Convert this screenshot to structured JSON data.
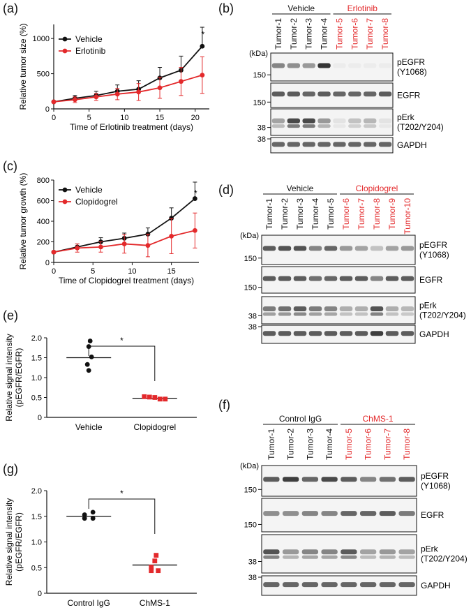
{
  "colors": {
    "control": "#111111",
    "treatment": "#e3292b",
    "blot_bg": "#f4f4f4",
    "band": "#2a2a2a"
  },
  "panels": {
    "a": "(a)",
    "b": "(b)",
    "c": "(c)",
    "d": "(d)",
    "e": "(e)",
    "f": "(f)",
    "g": "(g)"
  },
  "chart_data": [
    {
      "id": "a",
      "type": "line",
      "xlabel": "Time of Erlotinib treatment (days)",
      "ylabel": "Relative tumor size (%)",
      "xlim": [
        0,
        22
      ],
      "ylim": [
        0,
        1200
      ],
      "xticks": [
        0,
        5,
        10,
        15,
        20
      ],
      "yticks": [
        0,
        500,
        1000
      ],
      "annotation": "*",
      "series": [
        {
          "name": "Vehicle",
          "color": "#111111",
          "x": [
            0,
            3,
            6,
            9,
            12,
            15,
            18,
            21
          ],
          "y": [
            100,
            150,
            190,
            250,
            280,
            440,
            550,
            890
          ],
          "err": [
            15,
            40,
            60,
            90,
            120,
            150,
            200,
            270
          ]
        },
        {
          "name": "Erlotinib",
          "color": "#e3292b",
          "x": [
            0,
            3,
            6,
            9,
            12,
            15,
            18,
            21
          ],
          "y": [
            100,
            130,
            170,
            210,
            240,
            300,
            390,
            480
          ],
          "err": [
            10,
            40,
            50,
            80,
            120,
            150,
            200,
            260
          ]
        }
      ]
    },
    {
      "id": "c",
      "type": "line",
      "xlabel": "Time of Clopidogrel treatment (days)",
      "ylabel": "Relative tumor growth (%)",
      "xlim": [
        0,
        18.5
      ],
      "ylim": [
        0,
        800
      ],
      "xticks": [
        0,
        5,
        10,
        15
      ],
      "yticks": [
        0,
        200,
        400,
        600,
        800
      ],
      "annotation": "*",
      "series": [
        {
          "name": "Vehicle",
          "color": "#111111",
          "x": [
            0,
            3,
            6,
            9,
            12,
            15,
            18
          ],
          "y": [
            100,
            150,
            200,
            235,
            275,
            430,
            620
          ],
          "err": [
            10,
            30,
            40,
            50,
            60,
            100,
            160
          ]
        },
        {
          "name": "Clopidogrel",
          "color": "#e3292b",
          "x": [
            0,
            3,
            6,
            9,
            12,
            15,
            18
          ],
          "y": [
            100,
            140,
            150,
            180,
            165,
            255,
            310
          ],
          "err": [
            10,
            40,
            50,
            90,
            110,
            170,
            170
          ]
        }
      ]
    },
    {
      "id": "e",
      "type": "scatter",
      "ylabel": "Relative signal intensity (pEGFR/EGFR)",
      "categories": [
        "Vehicle",
        "Clopidogrel"
      ],
      "ylim": [
        0,
        2.0
      ],
      "yticks": [
        "0",
        "0.5",
        "1.0",
        "1.5",
        "2.0"
      ],
      "annotation": "*",
      "groups": [
        {
          "name": "Vehicle",
          "marker": "circle",
          "color": "#111111",
          "mean": 1.5,
          "values": [
            1.92,
            1.78,
            1.52,
            1.33,
            1.18
          ]
        },
        {
          "name": "Clopidogrel",
          "marker": "square",
          "color": "#e3292b",
          "mean": 0.48,
          "values": [
            0.52,
            0.51,
            0.5,
            0.46,
            0.46
          ]
        }
      ]
    },
    {
      "id": "g",
      "type": "scatter",
      "ylabel": "Relative signal intensity (pEGFR/EGFR)",
      "categories": [
        "Control IgG",
        "ChMS-1"
      ],
      "ylim": [
        0,
        2.0
      ],
      "yticks": [
        "0",
        "0.5",
        "1.0",
        "1.5",
        "2.0"
      ],
      "annotation": "*",
      "groups": [
        {
          "name": "Control IgG",
          "marker": "circle",
          "color": "#111111",
          "mean": 1.5,
          "values": [
            1.58,
            1.53,
            1.46,
            1.46
          ]
        },
        {
          "name": "ChMS-1",
          "marker": "square",
          "color": "#e3292b",
          "mean": 0.55,
          "values": [
            0.74,
            0.63,
            0.51,
            0.44,
            0.44
          ]
        }
      ]
    }
  ],
  "blots": [
    {
      "id": "b",
      "groups": [
        {
          "label": "Vehicle",
          "color": "#111111",
          "span": [
            0,
            3
          ]
        },
        {
          "label": "Erlotinib",
          "color": "#e3292b",
          "span": [
            4,
            7
          ]
        }
      ],
      "lanes": [
        "Tumor-1",
        "Tumor-2",
        "Tumor-3",
        "Tumor-4",
        "Tumor-5",
        "Tumor-6",
        "Tumor-7",
        "Tumor-8"
      ],
      "lane_colors": [
        "#111111",
        "#111111",
        "#111111",
        "#111111",
        "#e3292b",
        "#e3292b",
        "#e3292b",
        "#e3292b"
      ],
      "kda_unit": "(kDa)",
      "strips": [
        {
          "label": "pEGFR\n(Y1068)",
          "marker": "150",
          "intensity": [
            0.55,
            0.5,
            0.45,
            0.95,
            0.04,
            0.04,
            0.04,
            0.04
          ]
        },
        {
          "label": "EGFR",
          "marker": "150",
          "intensity": [
            0.75,
            0.75,
            0.7,
            0.75,
            0.7,
            0.7,
            0.7,
            0.75
          ]
        },
        {
          "label": "pErk\n(T202/Y204)",
          "marker": "38",
          "intensity": [
            0.4,
            0.85,
            0.85,
            0.45,
            0.08,
            0.25,
            0.3,
            0.08
          ]
        },
        {
          "label": "GAPDH",
          "marker": "38",
          "intensity": [
            0.7,
            0.7,
            0.7,
            0.7,
            0.7,
            0.7,
            0.7,
            0.7
          ]
        }
      ]
    },
    {
      "id": "d",
      "groups": [
        {
          "label": "Vehicle",
          "color": "#111111",
          "span": [
            0,
            4
          ]
        },
        {
          "label": "Clopidogrel",
          "color": "#e3292b",
          "span": [
            5,
            9
          ]
        }
      ],
      "lanes": [
        "Tumor-1",
        "Tumor-2",
        "Tumor-3",
        "Tumor-4",
        "Tumor-5",
        "Tumor-6",
        "Tumor-7",
        "Tumor-8",
        "Tumor-9",
        "Tumor-10"
      ],
      "lane_colors": [
        "#111111",
        "#111111",
        "#111111",
        "#111111",
        "#111111",
        "#e3292b",
        "#e3292b",
        "#e3292b",
        "#e3292b",
        "#e3292b"
      ],
      "kda_unit": "(kDa)",
      "strips": [
        {
          "label": "pEGFR\n(Y1068)",
          "marker": "150",
          "intensity": [
            0.75,
            0.8,
            0.8,
            0.55,
            0.7,
            0.45,
            0.4,
            0.25,
            0.4,
            0.45
          ]
        },
        {
          "label": "EGFR",
          "marker": "150",
          "intensity": [
            0.75,
            0.75,
            0.75,
            0.65,
            0.7,
            0.75,
            0.75,
            0.55,
            0.75,
            0.75
          ]
        },
        {
          "label": "pErk\n(T202/Y204)",
          "marker": "38",
          "intensity": [
            0.6,
            0.65,
            0.75,
            0.6,
            0.55,
            0.35,
            0.35,
            0.8,
            0.35,
            0.3
          ]
        },
        {
          "label": "GAPDH",
          "marker": "38",
          "intensity": [
            0.75,
            0.75,
            0.75,
            0.75,
            0.75,
            0.75,
            0.75,
            0.9,
            0.75,
            0.75
          ]
        }
      ]
    },
    {
      "id": "f",
      "groups": [
        {
          "label": "Control IgG",
          "color": "#111111",
          "span": [
            0,
            3
          ]
        },
        {
          "label": "ChMS-1",
          "color": "#e3292b",
          "span": [
            4,
            7
          ]
        }
      ],
      "lanes": [
        "Tumor-1",
        "Tumor-2",
        "Tumor-3",
        "Tumor-4",
        "Tumor-5",
        "Tumor-6",
        "Tumor-7",
        "Tumor-8"
      ],
      "lane_colors": [
        "#111111",
        "#111111",
        "#111111",
        "#111111",
        "#e3292b",
        "#e3292b",
        "#e3292b",
        "#e3292b"
      ],
      "kda_unit": "(kDa)",
      "strips": [
        {
          "label": "pEGFR\n(Y1068)",
          "marker": "150",
          "intensity": [
            0.75,
            0.9,
            0.7,
            0.85,
            0.75,
            0.55,
            0.65,
            0.75
          ]
        },
        {
          "label": "EGFR",
          "marker": "150",
          "intensity": [
            0.5,
            0.5,
            0.55,
            0.55,
            0.7,
            0.7,
            0.75,
            0.6
          ]
        },
        {
          "label": "pErk\n(T202/Y204)",
          "marker": "38",
          "intensity": [
            0.8,
            0.45,
            0.55,
            0.55,
            0.75,
            0.4,
            0.45,
            0.4
          ]
        },
        {
          "label": "GAPDH",
          "marker": "38",
          "intensity": [
            0.7,
            0.7,
            0.7,
            0.7,
            0.7,
            0.7,
            0.7,
            0.7
          ]
        }
      ]
    }
  ]
}
